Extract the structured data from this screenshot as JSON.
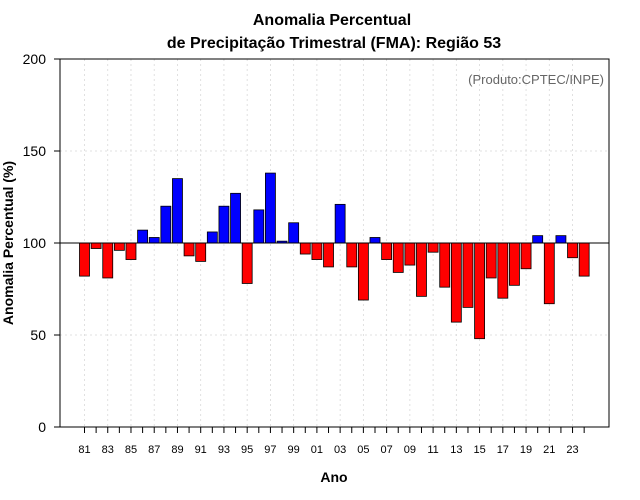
{
  "chart_data": {
    "type": "bar",
    "title_line1": "Anomalia Percentual",
    "title_line2": "de Precipitação Trimestral (FMA): Região 53",
    "xlabel": "Ano",
    "ylabel": "Anomalia Percentual (%)",
    "credit": "(Produto:CPTEC/INPE)",
    "ylim": [
      0,
      200
    ],
    "yticks": [
      0,
      50,
      100,
      150,
      200
    ],
    "baseline": 100,
    "grid": true,
    "colors": {
      "above": "#0000ff",
      "below": "#ff0000",
      "edge": "#000000",
      "grid": "#d9d9d9"
    },
    "categories": [
      "1981",
      "1982",
      "1983",
      "1984",
      "1985",
      "1986",
      "1987",
      "1988",
      "1989",
      "1990",
      "1991",
      "1992",
      "1993",
      "1994",
      "1995",
      "1996",
      "1997",
      "1998",
      "1999",
      "2000",
      "2001",
      "2002",
      "2003",
      "2004",
      "2005",
      "2006",
      "2007",
      "2008",
      "2009",
      "2010",
      "2011",
      "2012",
      "2013",
      "2014",
      "2015",
      "2016",
      "2017",
      "2018",
      "2019",
      "2020",
      "2021",
      "2022",
      "2023",
      "2024"
    ],
    "tick_labels": [
      "81",
      "83",
      "85",
      "87",
      "89",
      "91",
      "93",
      "95",
      "97",
      "99",
      "01",
      "03",
      "05",
      "07",
      "09",
      "11",
      "13",
      "15",
      "17",
      "19",
      "21",
      "23"
    ],
    "values": [
      82,
      97,
      81,
      96,
      91,
      107,
      103,
      120,
      135,
      93,
      90,
      106,
      120,
      127,
      78,
      118,
      138,
      101,
      111,
      94,
      91,
      87,
      121,
      87,
      69,
      103,
      91,
      84,
      88,
      71,
      95,
      76,
      57,
      65,
      48,
      81,
      70,
      77,
      86,
      104,
      67,
      104,
      92,
      82
    ]
  }
}
